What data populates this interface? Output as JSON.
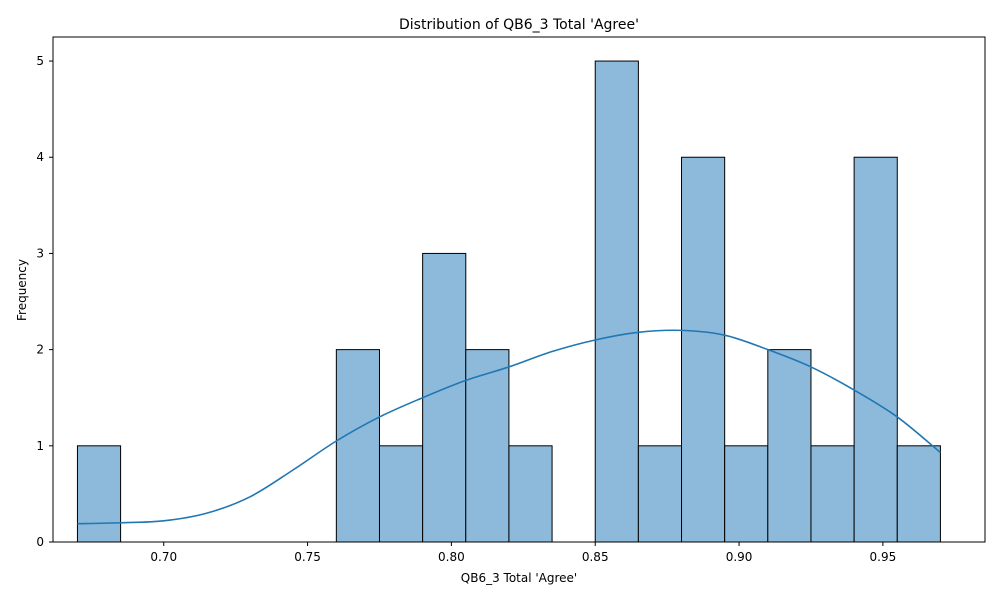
{
  "chart_data": {
    "type": "bar",
    "title": "Distribution of QB6_3 Total 'Agree'",
    "xlabel": "QB6_3 Total 'Agree'",
    "ylabel": "Frequency",
    "xlim": [
      0.6615,
      0.9855
    ],
    "ylim": [
      0,
      5.25
    ],
    "xticks": [
      "0.70",
      "0.75",
      "0.80",
      "0.85",
      "0.90",
      "0.95"
    ],
    "yticks": [
      "0",
      "1",
      "2",
      "3",
      "4",
      "5"
    ],
    "grid": false,
    "bins": [
      {
        "x0": 0.67,
        "x1": 0.685,
        "count": 1
      },
      {
        "x0": 0.685,
        "x1": 0.7,
        "count": 0
      },
      {
        "x0": 0.7,
        "x1": 0.715,
        "count": 0
      },
      {
        "x0": 0.715,
        "x1": 0.73,
        "count": 0
      },
      {
        "x0": 0.73,
        "x1": 0.745,
        "count": 0
      },
      {
        "x0": 0.745,
        "x1": 0.76,
        "count": 0
      },
      {
        "x0": 0.76,
        "x1": 0.775,
        "count": 2
      },
      {
        "x0": 0.775,
        "x1": 0.79,
        "count": 1
      },
      {
        "x0": 0.79,
        "x1": 0.805,
        "count": 3
      },
      {
        "x0": 0.805,
        "x1": 0.82,
        "count": 2
      },
      {
        "x0": 0.82,
        "x1": 0.835,
        "count": 1
      },
      {
        "x0": 0.835,
        "x1": 0.85,
        "count": 0
      },
      {
        "x0": 0.85,
        "x1": 0.865,
        "count": 5
      },
      {
        "x0": 0.865,
        "x1": 0.88,
        "count": 1
      },
      {
        "x0": 0.88,
        "x1": 0.895,
        "count": 4
      },
      {
        "x0": 0.895,
        "x1": 0.91,
        "count": 1
      },
      {
        "x0": 0.91,
        "x1": 0.925,
        "count": 2
      },
      {
        "x0": 0.925,
        "x1": 0.94,
        "count": 1
      },
      {
        "x0": 0.94,
        "x1": 0.955,
        "count": 4
      },
      {
        "x0": 0.955,
        "x1": 0.97,
        "count": 1
      }
    ],
    "kde": {
      "x": [
        0.67,
        0.685,
        0.7,
        0.715,
        0.73,
        0.745,
        0.76,
        0.775,
        0.79,
        0.805,
        0.82,
        0.835,
        0.85,
        0.865,
        0.88,
        0.895,
        0.91,
        0.925,
        0.94,
        0.955,
        0.97
      ],
      "y": [
        0.19,
        0.2,
        0.22,
        0.3,
        0.47,
        0.75,
        1.05,
        1.3,
        1.5,
        1.68,
        1.82,
        1.98,
        2.1,
        2.18,
        2.2,
        2.15,
        2.0,
        1.82,
        1.58,
        1.3,
        0.93
      ]
    },
    "colors": {
      "bar_fill": "#8db9da",
      "bar_edge": "#000000",
      "kde": "#1f77b4"
    }
  }
}
